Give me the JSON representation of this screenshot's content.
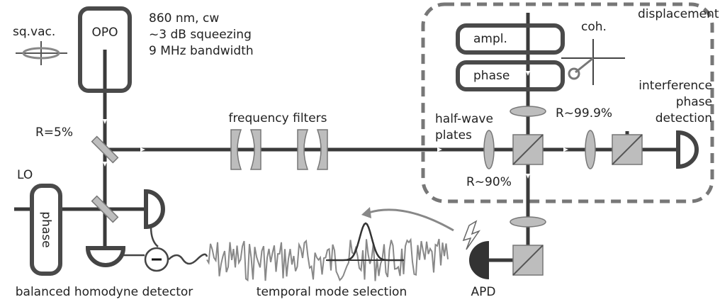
{
  "labels": {
    "sq_vac": "sq.vac.",
    "opo": "OPO",
    "source": [
      "860 nm, cw",
      "~3 dB squeezing",
      "9 MHz bandwidth"
    ],
    "displacement": "displacement",
    "ampl": "ampl.",
    "phase_top": "phase",
    "coh": "coh.",
    "interference": [
      "interference",
      "phase",
      "detection"
    ],
    "r_999": "R~99.9%",
    "half_wave": [
      "half-wave",
      "plates"
    ],
    "frequency_filters": "frequency filters",
    "r_5": "R=5%",
    "r_90": "R~90%",
    "lo": "LO",
    "phase_lo": "phase",
    "bhd": "balanced homodyne detector",
    "temporal": "temporal mode selection",
    "apd": "APD"
  }
}
